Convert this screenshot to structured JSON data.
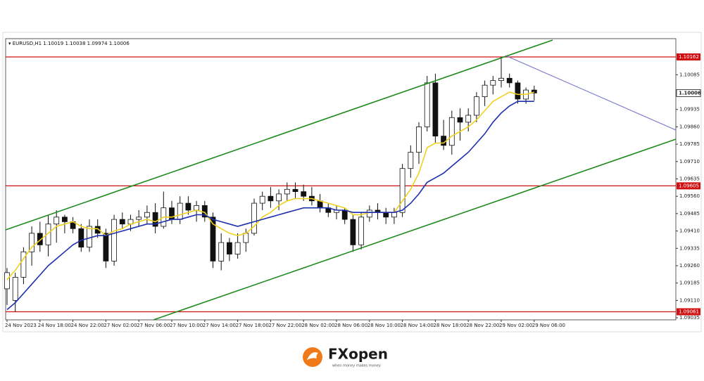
{
  "chart_data": {
    "type": "candlestick",
    "symbol": "EURUSD,H1",
    "categories": [
      "24 Nov 2023",
      null,
      null,
      null,
      "24 Nov 18:00",
      null,
      null,
      null,
      "24 Nov 22:00",
      null,
      null,
      null,
      "27 Nov 02:00",
      null,
      null,
      null,
      "27 Nov 06:00",
      null,
      null,
      null,
      "27 Nov 10:00",
      null,
      null,
      null,
      "27 Nov 14:00",
      null,
      null,
      null,
      "27 Nov 18:00",
      null,
      null,
      null,
      "27 Nov 22:00",
      null,
      null,
      null,
      "28 Nov 02:00",
      null,
      null,
      null,
      "28 Nov 06:00",
      null,
      null,
      null,
      "28 Nov 10:00",
      null,
      null,
      null,
      "28 Nov 14:00",
      null,
      null,
      null,
      "28 Nov 18:00",
      null,
      null,
      null,
      "28 Nov 22:00",
      null,
      null,
      null,
      "29 Nov 02:00",
      null,
      null,
      null,
      "29 Nov 06:00"
    ],
    "open": [
      1.0916,
      1.0911,
      1.0921,
      1.0932,
      1.094,
      1.0935,
      1.0944,
      1.0947,
      1.0945,
      1.0942,
      1.0934,
      1.0943,
      1.094,
      1.0928,
      1.0946,
      1.0944,
      1.0946,
      1.0947,
      1.0949,
      1.0943,
      1.0951,
      1.0946,
      1.0953,
      1.095,
      1.0952,
      1.0947,
      1.0928,
      1.0936,
      1.0931,
      1.0936,
      1.094,
      1.0953,
      1.0956,
      1.0954,
      1.0957,
      1.0959,
      1.0958,
      1.0956,
      1.0954,
      1.0951,
      1.0949,
      1.095,
      1.0946,
      1.0935,
      1.0947,
      1.095,
      1.0949,
      1.0947,
      1.0949,
      1.0968,
      1.0975,
      1.0986,
      1.1005,
      1.0982,
      1.0978,
      1.099,
      1.0988,
      1.0991,
      1.0999,
      1.1004,
      1.1006,
      1.1007,
      1.1005,
      1.0998,
      1.10019
    ],
    "high": [
      1.0925,
      1.0923,
      1.0934,
      1.0943,
      1.0945,
      1.0948,
      1.095,
      1.0948,
      1.0947,
      1.0944,
      1.0946,
      1.0946,
      1.0942,
      1.0948,
      1.0949,
      1.0948,
      1.095,
      1.0952,
      1.0953,
      1.0958,
      1.0954,
      1.0956,
      1.0956,
      1.0954,
      1.0954,
      1.0949,
      1.094,
      1.0938,
      1.094,
      1.0942,
      1.0955,
      1.0958,
      1.096,
      1.0959,
      1.0962,
      1.0962,
      1.0961,
      1.096,
      1.0957,
      1.0953,
      1.0952,
      1.0951,
      1.0948,
      1.0949,
      1.0952,
      1.0953,
      1.0951,
      1.0951,
      1.097,
      1.0978,
      1.0988,
      1.1008,
      1.1009,
      1.0989,
      1.0993,
      1.0994,
      1.0994,
      1.1001,
      1.1006,
      1.1008,
      1.10162,
      1.1009,
      1.1006,
      1.1003,
      1.10038
    ],
    "low": [
      1.0909,
      1.0906,
      1.0918,
      1.0926,
      1.0932,
      1.093,
      1.0936,
      1.094,
      1.094,
      1.0932,
      1.0932,
      1.0938,
      1.0925,
      1.0926,
      1.0942,
      1.0941,
      1.0943,
      1.0944,
      1.094,
      1.0942,
      1.0944,
      1.0944,
      1.0948,
      1.0945,
      1.0945,
      1.0925,
      1.0924,
      1.0928,
      1.0929,
      1.0932,
      1.0939,
      1.095,
      1.0951,
      1.095,
      1.0954,
      1.0955,
      1.0954,
      1.0952,
      1.0949,
      1.0947,
      1.0946,
      1.0944,
      1.0932,
      1.0933,
      1.0945,
      1.0946,
      1.0944,
      1.0944,
      1.0947,
      1.0964,
      1.097,
      1.0984,
      1.0979,
      1.0976,
      1.0974,
      1.098,
      1.0984,
      1.0988,
      1.0995,
      1.1,
      1.1003,
      1.1003,
      1.0996,
      1.0996,
      1.09974
    ],
    "close": [
      1.0923,
      1.0921,
      1.0932,
      1.094,
      1.0935,
      1.0944,
      1.0947,
      1.0945,
      1.0942,
      1.0934,
      1.0943,
      1.094,
      1.0928,
      1.0946,
      1.0944,
      1.0946,
      1.0947,
      1.0949,
      1.0943,
      1.0951,
      1.0946,
      1.0953,
      1.095,
      1.0952,
      1.0947,
      1.0928,
      1.0936,
      1.0931,
      1.0936,
      1.094,
      1.0953,
      1.0956,
      1.0954,
      1.0957,
      1.0959,
      1.0958,
      1.0956,
      1.0954,
      1.0951,
      1.0949,
      1.095,
      1.0946,
      1.0935,
      1.0947,
      1.095,
      1.0949,
      1.0947,
      1.0949,
      1.0968,
      1.0975,
      1.0986,
      1.1005,
      1.0982,
      1.0978,
      1.099,
      1.0988,
      1.0991,
      1.0999,
      1.1004,
      1.1006,
      1.1007,
      1.1005,
      1.0998,
      1.10019,
      1.10006
    ],
    "moving_averages": [
      {
        "color": "#f0d020",
        "values": [
          1.092,
          1.0924,
          1.0929,
          1.0934,
          1.0937,
          1.094,
          1.0943,
          1.0944,
          1.0945,
          1.0943,
          1.0942,
          1.0942,
          1.0939,
          1.0941,
          1.0942,
          1.0944,
          1.0945,
          1.0946,
          1.0945,
          1.0947,
          1.0947,
          1.0948,
          1.0949,
          1.095,
          1.0949,
          1.0944,
          1.0942,
          1.094,
          1.0939,
          1.094,
          1.0943,
          1.0947,
          1.0949,
          1.0952,
          1.0954,
          1.0955,
          1.0955,
          1.0955,
          1.0954,
          1.0953,
          1.0952,
          1.0951,
          1.0948,
          1.0948,
          1.0949,
          1.0949,
          1.0949,
          1.0949,
          1.0954,
          1.0959,
          1.0966,
          1.0977,
          1.0979,
          1.0979,
          1.0982,
          1.0984,
          1.0986,
          1.0989,
          1.0993,
          1.0997,
          1.0999,
          1.1001,
          1.1,
          1.1,
          1.1001
        ]
      },
      {
        "color": "#1c2fb0",
        "values": [
          1.0907,
          1.091,
          1.0914,
          1.0918,
          1.0922,
          1.0926,
          1.0929,
          1.0932,
          1.0935,
          1.0937,
          1.0938,
          1.0939,
          1.0939,
          1.094,
          1.0941,
          1.0942,
          1.0943,
          1.0944,
          1.0944,
          1.0945,
          1.0946,
          1.0946,
          1.0947,
          1.0948,
          1.0948,
          1.0946,
          1.0945,
          1.0944,
          1.0943,
          1.0944,
          1.0945,
          1.0946,
          1.0947,
          1.0948,
          1.0949,
          1.095,
          1.0951,
          1.0951,
          1.0951,
          1.0951,
          1.095,
          1.095,
          1.0949,
          1.0949,
          1.0949,
          1.0949,
          1.0949,
          1.0949,
          1.095,
          1.0953,
          1.0957,
          1.0962,
          1.0964,
          1.0966,
          1.0969,
          1.0972,
          1.0975,
          1.0979,
          1.0983,
          1.0988,
          1.0992,
          1.0995,
          1.0997,
          1.0997,
          1.0997
        ]
      }
    ],
    "levels": [
      1.10162,
      1.09605,
      1.09061
    ],
    "level_color": "#d01010",
    "ylim": [
      1.09026,
      1.10241
    ],
    "yticks": [
      1.10085,
      1.09935,
      {
        "value": 1.0986,
        "label": "1.09860"
      },
      1.09785,
      {
        "value": 1.0971,
        "label": "1.09710"
      },
      1.09635,
      {
        "value": 1.0956,
        "label": "1.09560"
      },
      1.09485,
      {
        "value": 1.0941,
        "label": "1.09410"
      },
      1.09335,
      {
        "value": 1.0926,
        "label": "1.09260"
      },
      1.09185,
      {
        "value": 1.0911,
        "label": "1.09110"
      },
      1.09035
    ]
  },
  "brand": {
    "name": "FXopen",
    "tagline": "when money makes money"
  }
}
